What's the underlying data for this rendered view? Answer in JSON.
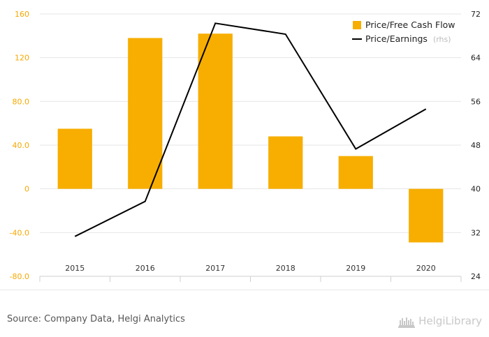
{
  "chart_data": {
    "type": "bar+line",
    "categories": [
      "2015",
      "2016",
      "2017",
      "2018",
      "2019",
      "2020"
    ],
    "series": [
      {
        "name": "Price/Free Cash Flow",
        "type": "bar",
        "axis": "left",
        "values": [
          55,
          138,
          142,
          48,
          30,
          -49
        ]
      },
      {
        "name": "Price/Earnings",
        "type": "line",
        "axis": "right",
        "values": [
          31.3,
          37.7,
          70.3,
          68.3,
          47.3,
          54.6
        ]
      }
    ],
    "left_axis": {
      "ylim": [
        -80,
        160
      ],
      "ticks": [
        "-80.0",
        "-40.0",
        "0",
        "40.0",
        "80.0",
        "120",
        "160"
      ]
    },
    "right_axis": {
      "ylim": [
        24,
        72
      ],
      "ticks": [
        "24",
        "32",
        "40",
        "48",
        "56",
        "64",
        "72"
      ]
    },
    "legend": {
      "position": "top-right",
      "bar_label": "Price/Free Cash Flow",
      "line_label": "Price/Earnings",
      "line_note": "(rhs)"
    },
    "grid": true,
    "colors": {
      "bar": "#f7ae00",
      "line": "#000000",
      "left_ticks": "#f5a800",
      "grid": "#e6e6e6"
    }
  },
  "footer": {
    "source": "Source: Company Data, Helgi Analytics",
    "logo_text": "HelgiLibrary"
  }
}
